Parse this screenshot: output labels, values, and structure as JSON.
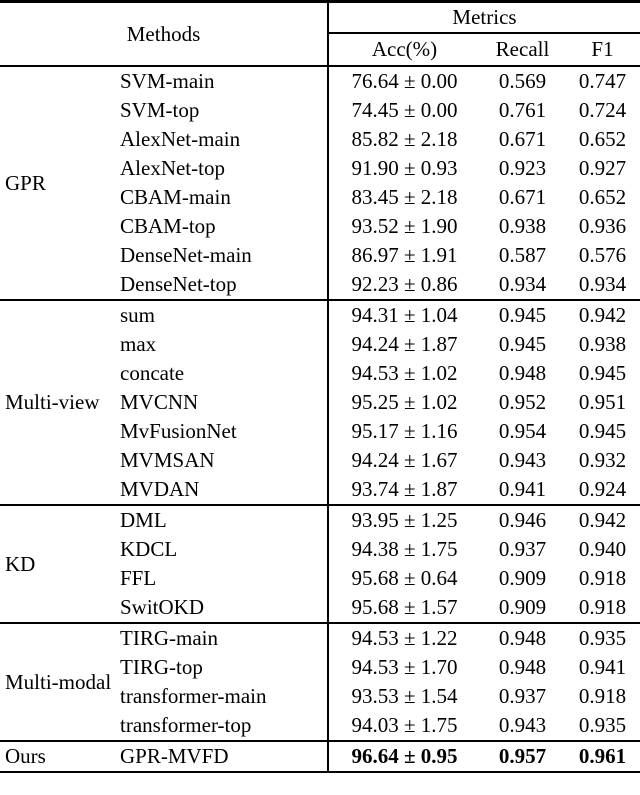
{
  "table": {
    "header": {
      "methods_label": "Methods",
      "metrics_label": "Metrics",
      "columns": [
        "Acc(%)",
        "Recall",
        "F1"
      ]
    },
    "groups": [
      {
        "name": "GPR",
        "rows": [
          {
            "method": "SVM-main",
            "acc": "76.64 ± 0.00",
            "recall": "0.569",
            "f1": "0.747"
          },
          {
            "method": "SVM-top",
            "acc": "74.45 ± 0.00",
            "recall": "0.761",
            "f1": "0.724"
          },
          {
            "method": "AlexNet-main",
            "acc": "85.82 ± 2.18",
            "recall": "0.671",
            "f1": "0.652"
          },
          {
            "method": "AlexNet-top",
            "acc": "91.90 ± 0.93",
            "recall": "0.923",
            "f1": "0.927"
          },
          {
            "method": "CBAM-main",
            "acc": "83.45 ± 2.18",
            "recall": "0.671",
            "f1": "0.652"
          },
          {
            "method": "CBAM-top",
            "acc": "93.52 ± 1.90",
            "recall": "0.938",
            "f1": "0.936"
          },
          {
            "method": "DenseNet-main",
            "acc": "86.97 ± 1.91",
            "recall": "0.587",
            "f1": "0.576"
          },
          {
            "method": "DenseNet-top",
            "acc": "92.23 ± 0.86",
            "recall": "0.934",
            "f1": "0.934"
          }
        ]
      },
      {
        "name": "Multi-view",
        "rows": [
          {
            "method": "sum",
            "acc": "94.31 ± 1.04",
            "recall": "0.945",
            "f1": "0.942"
          },
          {
            "method": "max",
            "acc": "94.24 ± 1.87",
            "recall": "0.945",
            "f1": "0.938"
          },
          {
            "method": "concate",
            "acc": "94.53 ± 1.02",
            "recall": "0.948",
            "f1": "0.945"
          },
          {
            "method": "MVCNN",
            "acc": "95.25 ± 1.02",
            "recall": "0.952",
            "f1": "0.951"
          },
          {
            "method": "MvFusionNet",
            "acc": "95.17 ± 1.16",
            "recall": "0.954",
            "f1": "0.945"
          },
          {
            "method": "MVMSAN",
            "acc": "94.24 ± 1.67",
            "recall": "0.943",
            "f1": "0.932"
          },
          {
            "method": "MVDAN",
            "acc": "93.74 ± 1.87",
            "recall": "0.941",
            "f1": "0.924"
          }
        ]
      },
      {
        "name": "KD",
        "rows": [
          {
            "method": "DML",
            "acc": "93.95 ± 1.25",
            "recall": "0.946",
            "f1": "0.942"
          },
          {
            "method": "KDCL",
            "acc": "94.38 ± 1.75",
            "recall": "0.937",
            "f1": "0.940"
          },
          {
            "method": "FFL",
            "acc": "95.68 ± 0.64",
            "recall": "0.909",
            "f1": "0.918"
          },
          {
            "method": "SwitOKD",
            "acc": "95.68 ± 1.57",
            "recall": "0.909",
            "f1": "0.918"
          }
        ]
      },
      {
        "name": "Multi-modal",
        "rows": [
          {
            "method": "TIRG-main",
            "acc": "94.53 ± 1.22",
            "recall": "0.948",
            "f1": "0.935"
          },
          {
            "method": "TIRG-top",
            "acc": "94.53 ± 1.70",
            "recall": "0.948",
            "f1": "0.941"
          },
          {
            "method": "transformer-main",
            "acc": "93.53 ± 1.54",
            "recall": "0.937",
            "f1": "0.918"
          },
          {
            "method": "transformer-top",
            "acc": "94.03 ± 1.75",
            "recall": "0.943",
            "f1": "0.935"
          }
        ]
      },
      {
        "name": "Ours",
        "rows": [
          {
            "method": "GPR-MVFD",
            "acc": "96.64 ± 0.95",
            "recall": "0.957",
            "f1": "0.961"
          }
        ]
      }
    ]
  }
}
